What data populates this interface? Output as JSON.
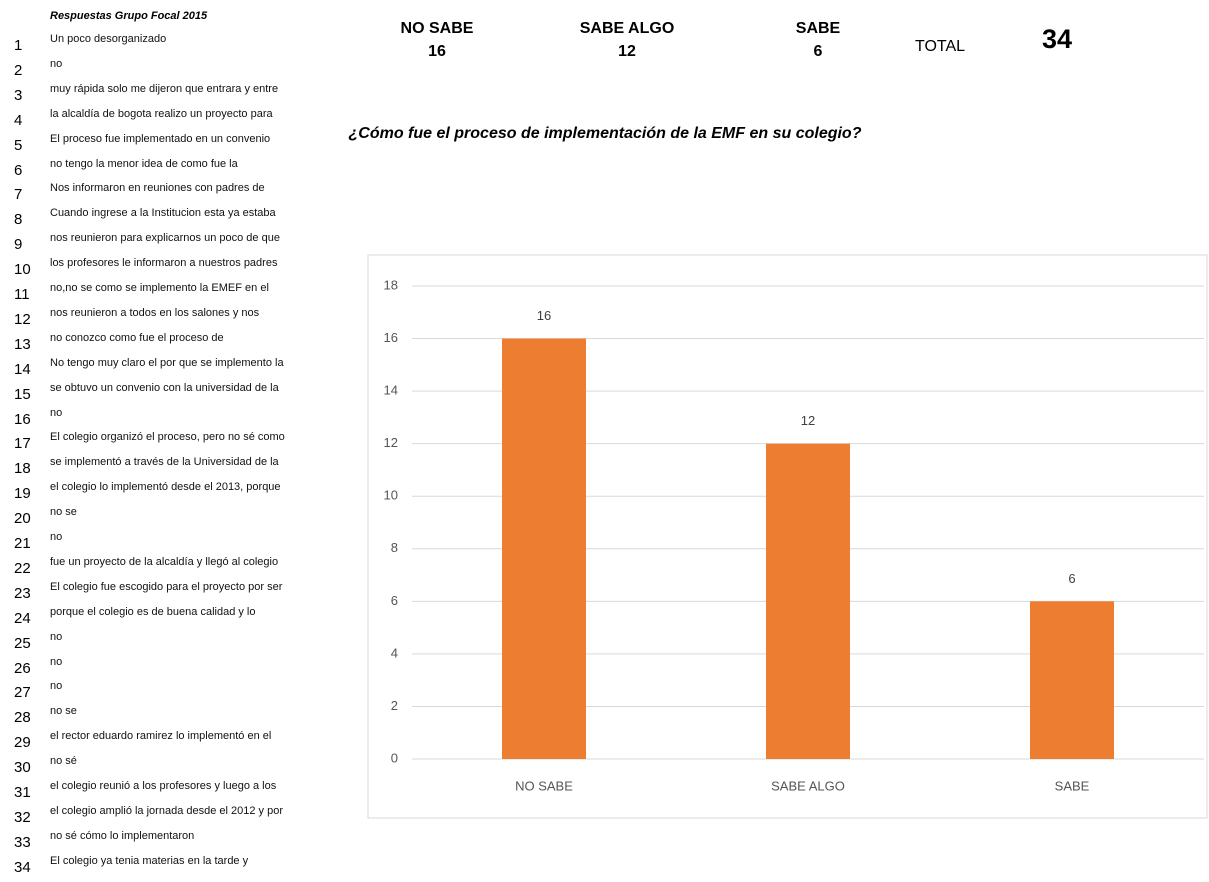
{
  "responses": {
    "title": "Respuestas Grupo Focal 2015",
    "rows": [
      {
        "n": 1,
        "text": "Un poco desorganizado"
      },
      {
        "n": 2,
        "text": "no"
      },
      {
        "n": 3,
        "text": "muy rápida solo me dijeron que entrara y entre"
      },
      {
        "n": 4,
        "text": "la alcaldía de bogota realizo un proyecto para"
      },
      {
        "n": 5,
        "text": "El proceso fue implementado en un convenio"
      },
      {
        "n": 6,
        "text": "no tengo la menor idea de como fue la"
      },
      {
        "n": 7,
        "text": "Nos informaron en reuniones con padres de"
      },
      {
        "n": 8,
        "text": "Cuando ingrese a la Institucion esta ya estaba"
      },
      {
        "n": 9,
        "text": "nos reunieron para explicarnos un poco de que"
      },
      {
        "n": 10,
        "text": "los profesores le informaron a nuestros padres"
      },
      {
        "n": 11,
        "text": "no,no se como se implemento la EMEF en el"
      },
      {
        "n": 12,
        "text": "nos reunieron a todos en los salones y nos"
      },
      {
        "n": 13,
        "text": "no conozco como fue el proceso de"
      },
      {
        "n": 14,
        "text": "No tengo muy claro el por que se implemento la"
      },
      {
        "n": 15,
        "text": "se obtuvo un convenio con la universidad de la"
      },
      {
        "n": 16,
        "text": "no"
      },
      {
        "n": 17,
        "text": "El colegio organizó el proceso, pero no sé como"
      },
      {
        "n": 18,
        "text": "se implementó a través de la Universidad de la"
      },
      {
        "n": 19,
        "text": "el colegio lo implementó desde el 2013, porque"
      },
      {
        "n": 20,
        "text": "no se"
      },
      {
        "n": 21,
        "text": "no"
      },
      {
        "n": 22,
        "text": "fue un proyecto de la alcaldía y llegó al colegio"
      },
      {
        "n": 23,
        "text": "El colegio fue escogido para el proyecto por ser"
      },
      {
        "n": 24,
        "text": "porque el colegio es de buena calidad y lo"
      },
      {
        "n": 25,
        "text": "no"
      },
      {
        "n": 26,
        "text": "no"
      },
      {
        "n": 27,
        "text": "no"
      },
      {
        "n": 28,
        "text": "no se"
      },
      {
        "n": 29,
        "text": "el rector eduardo ramirez lo implementó en el"
      },
      {
        "n": 30,
        "text": "no sé"
      },
      {
        "n": 31,
        "text": "el colegio reunió a los profesores y luego a los"
      },
      {
        "n": 32,
        "text": "el colegio amplió la jornada desde el 2012 y por"
      },
      {
        "n": 33,
        "text": "no sé cómo lo implementaron"
      },
      {
        "n": 34,
        "text": "El colegio ya tenia materias en la tarde y"
      }
    ]
  },
  "summary": {
    "items": [
      {
        "label": "NO SABE",
        "value": 16
      },
      {
        "label": "SABE ALGO",
        "value": 12
      },
      {
        "label": "SABE",
        "value": 6
      }
    ],
    "total_label": "TOTAL",
    "total": 34
  },
  "chart_data": {
    "type": "bar",
    "title": "¿Cómo fue el proceso de implementación de la EMF en su colegio?",
    "categories": [
      "NO SABE",
      "SABE ALGO",
      "SABE"
    ],
    "values": [
      16,
      12,
      6
    ],
    "color": "#ED7D31",
    "ylim": [
      0,
      18
    ],
    "yticks": [
      0,
      2,
      4,
      6,
      8,
      10,
      12,
      14,
      16,
      18
    ],
    "grid": true
  }
}
